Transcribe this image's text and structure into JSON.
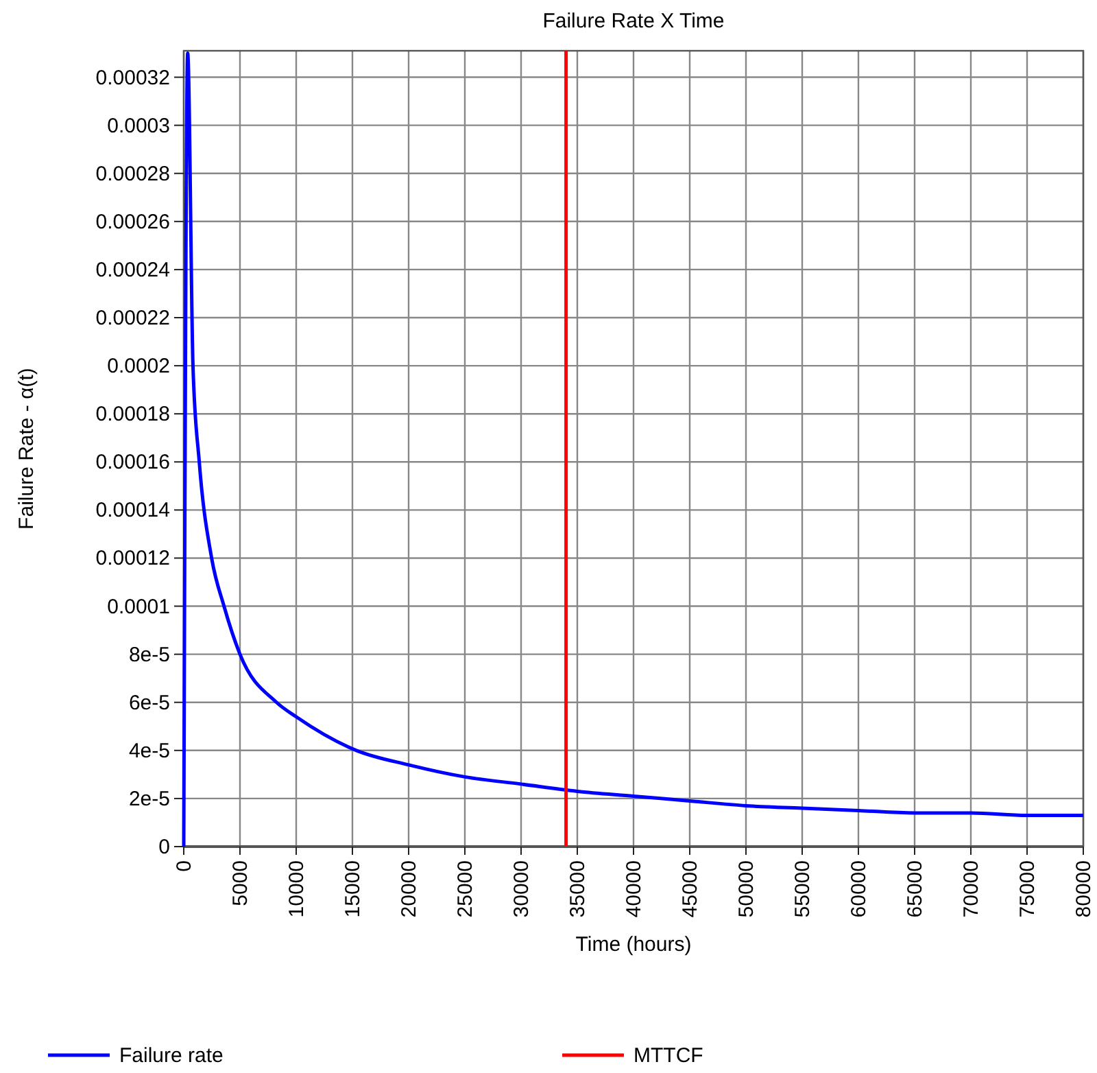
{
  "chart_data": {
    "type": "line",
    "title": "Failure Rate X Time",
    "xlabel": "Time (hours)",
    "ylabel": "Failure Rate - α(t)",
    "xlim": [
      0,
      80000
    ],
    "xticks": [
      0,
      5000,
      10000,
      15000,
      20000,
      25000,
      30000,
      35000,
      40000,
      45000,
      50000,
      55000,
      60000,
      65000,
      70000,
      75000,
      80000
    ],
    "ylim": [
      0,
      0.000331
    ],
    "yticks": [
      0,
      {
        "value": 2e-05,
        "label": "2e-5"
      },
      {
        "value": 4e-05,
        "label": "4e-5"
      },
      {
        "value": 6e-05,
        "label": "6e-5"
      },
      {
        "value": 8e-05,
        "label": "8e-5"
      },
      0.0001,
      0.00012,
      0.00014,
      0.00016,
      0.00018,
      0.0002,
      0.00022,
      0.00024,
      0.00026,
      0.00028,
      0.0003,
      0.00032
    ],
    "grid": true,
    "legend": "bottom",
    "marker": "none",
    "line_style": "solid",
    "series": [
      {
        "name": "Failure rate",
        "color": "#0000ff",
        "x": [
          0,
          350,
          820,
          1380,
          2480,
          3580,
          5000,
          8250,
          10000,
          15350,
          20000,
          25000,
          30000,
          35000,
          40000,
          45000,
          50000,
          55000,
          60000,
          65000,
          70000,
          75000,
          80000
        ],
        "values": [
          0,
          0.00033,
          0.0002,
          0.00016,
          0.00012,
          0.0001,
          8e-05,
          6e-05,
          5.4e-05,
          4e-05,
          3.4e-05,
          2.9e-05,
          2.6e-05,
          2.3e-05,
          2.1e-05,
          1.9e-05,
          1.7e-05,
          1.6e-05,
          1.5e-05,
          1.4e-05,
          1.4e-05,
          1.3e-05,
          1.3e-05
        ]
      },
      {
        "name": "MTTCF",
        "color": "#ff0000",
        "x": [
          34000,
          34000
        ],
        "values": [
          0,
          0.000331
        ]
      }
    ]
  }
}
